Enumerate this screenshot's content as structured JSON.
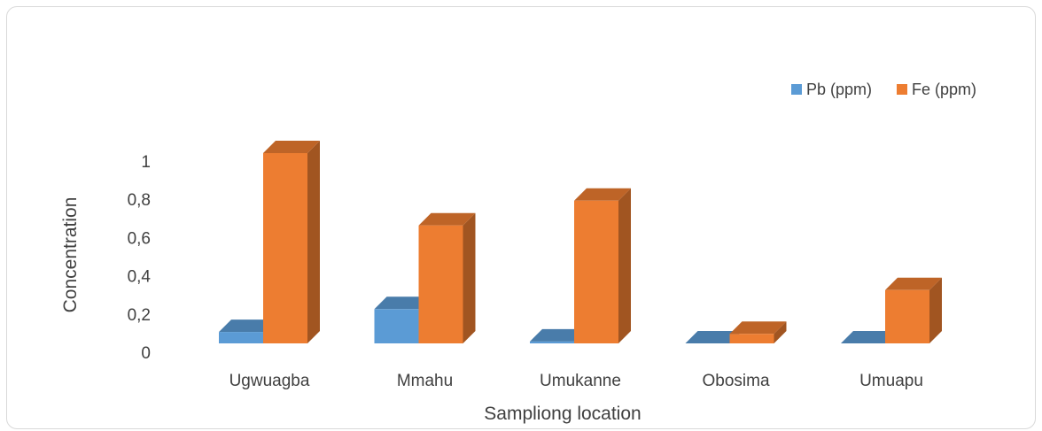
{
  "chart_data": {
    "type": "bar",
    "style": "3d-clustered-column",
    "categories": [
      "Ugwuagba",
      "Mmahu",
      "Umukanne",
      "Obosima",
      "Umuapu"
    ],
    "series": [
      {
        "name": "Pb (ppm)",
        "color": "#5b9bd5",
        "values": [
          0.06,
          0.18,
          0.01,
          0.0,
          0.0
        ]
      },
      {
        "name": "Fe (ppm)",
        "color": "#ed7d31",
        "values": [
          1.0,
          0.62,
          0.75,
          0.05,
          0.28
        ]
      }
    ],
    "y_ticks": [
      "0",
      "0,2",
      "0,4",
      "0,6",
      "0,8",
      "1"
    ],
    "ylim": [
      0,
      1
    ],
    "xlabel": "Sampliong location",
    "ylabel": "Concentration",
    "legend_position": "top-right",
    "grid": false
  }
}
